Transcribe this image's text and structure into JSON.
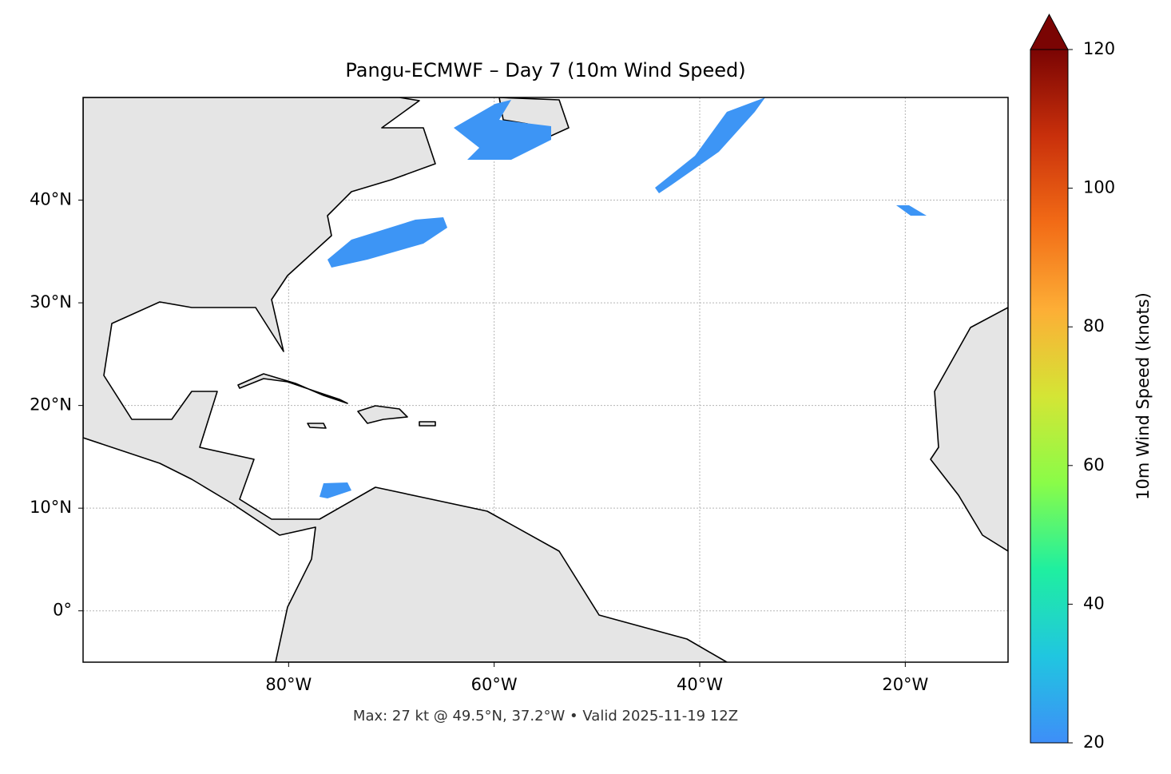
{
  "chart_data": {
    "type": "map",
    "title": "Pangu-ECMWF – Day 7 (10m Wind Speed)",
    "footer": "Max: 27 kt @ 49.5°N, 37.2°W • Valid 2025-11-19 12Z",
    "xlim": [
      -100,
      -10
    ],
    "ylim": [
      -5,
      50
    ],
    "xticks": [
      {
        "value": -80,
        "label": "80°W"
      },
      {
        "value": -60,
        "label": "60°W"
      },
      {
        "value": -40,
        "label": "40°W"
      },
      {
        "value": -20,
        "label": "20°W"
      }
    ],
    "yticks": [
      {
        "value": 0,
        "label": "0°"
      },
      {
        "value": 10,
        "label": "10°N"
      },
      {
        "value": 20,
        "label": "20°N"
      },
      {
        "value": 30,
        "label": "30°N"
      },
      {
        "value": 40,
        "label": "40°N"
      }
    ],
    "grid": true,
    "colorbar": {
      "label": "10m Wind Speed (knots)",
      "lim": [
        20,
        120
      ],
      "ticks": [
        20,
        40,
        60,
        80,
        100,
        120
      ],
      "colors": [
        "#3e8ef8",
        "#20c6e0",
        "#1fefa0",
        "#8afc48",
        "#d4e535",
        "#fdae36",
        "#f26b16",
        "#c9300b",
        "#7a0403"
      ]
    }
  }
}
